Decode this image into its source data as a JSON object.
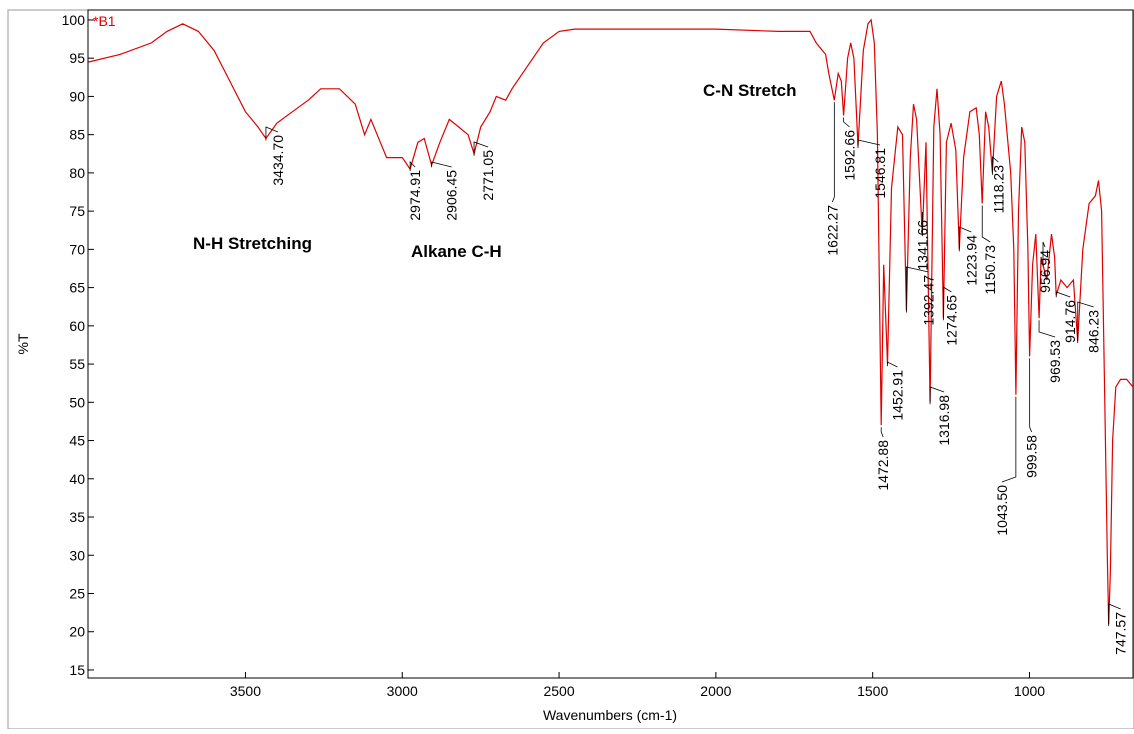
{
  "chart_data": {
    "type": "line",
    "y_label": "%T",
    "x_label": "Wavenumbers (cm-1)",
    "sample_label": "*B1",
    "annotations": [
      "N-H Stretching",
      "Alkane C-H",
      "C-N Stretch"
    ],
    "series": [
      {
        "name": "*B1",
        "color": "#e00000",
        "x": [
          4000,
          3900,
          3800,
          3750,
          3700,
          3650,
          3600,
          3550,
          3500,
          3460,
          3434.7,
          3400,
          3350,
          3300,
          3260,
          3200,
          3150,
          3120,
          3100,
          3080,
          3050,
          3000,
          2974.9,
          2950,
          2930,
          2906.5,
          2880,
          2850,
          2820,
          2790,
          2771,
          2750,
          2720,
          2700,
          2670,
          2650,
          2600,
          2550,
          2500,
          2450,
          2300,
          2000,
          1800,
          1700,
          1680,
          1650,
          1640,
          1622.3,
          1610,
          1600,
          1592.7,
          1580,
          1570,
          1560,
          1546.8,
          1530,
          1515,
          1505,
          1495,
          1485,
          1472.9,
          1465,
          1452.9,
          1440,
          1420,
          1405,
          1392.5,
          1380,
          1370,
          1360,
          1341.7,
          1330,
          1317,
          1305,
          1295,
          1285,
          1274.7,
          1265,
          1250,
          1235,
          1223.9,
          1210,
          1190,
          1170,
          1160,
          1150.7,
          1140,
          1130,
          1118.2,
          1105,
          1090,
          1080,
          1060,
          1050,
          1043.5,
          1035,
          1025,
          1015,
          1005,
          999.6,
          990,
          980,
          969.5,
          963,
          956.9,
          945,
          930,
          920,
          914.8,
          900,
          880,
          860,
          846.2,
          830,
          810,
          790,
          780,
          770,
          760,
          752,
          747.6,
          742,
          735,
          725,
          710,
          690,
          670
        ],
        "values": [
          94.5,
          95.5,
          97,
          98.5,
          99.5,
          98.5,
          96,
          92,
          88,
          86,
          84.5,
          86.5,
          88,
          89.5,
          91,
          91,
          89,
          85,
          87,
          85,
          82,
          82,
          80.5,
          84,
          84.5,
          81,
          84,
          87,
          86,
          85,
          82.5,
          86,
          88,
          90,
          89.5,
          91,
          94,
          97,
          98.5,
          98.8,
          98.8,
          98.8,
          98.5,
          98.5,
          97,
          95.5,
          93,
          89.5,
          93,
          92,
          87.5,
          95,
          97,
          95,
          83.5,
          96,
          99.5,
          100,
          97,
          85,
          47,
          68,
          55,
          78,
          86,
          85,
          62,
          82,
          89,
          87,
          72,
          84,
          50,
          86,
          91,
          85,
          61,
          84,
          86.5,
          83,
          70,
          82,
          88,
          88.5,
          85,
          76,
          88,
          86,
          80,
          90,
          92,
          89,
          80,
          70,
          51,
          75,
          86,
          84,
          70,
          56,
          68,
          72,
          61,
          69,
          68,
          66,
          72,
          69,
          64,
          66,
          65,
          66,
          58,
          70,
          76,
          77,
          79,
          75,
          50,
          30,
          21,
          28,
          45,
          52,
          53,
          53,
          52
        ]
      }
    ],
    "peaks": [
      {
        "value": 3434.7,
        "label": "3434.70",
        "y": 84.5
      },
      {
        "value": 2974.91,
        "label": "2974.91",
        "y": 80.5
      },
      {
        "value": 2906.45,
        "label": "2906.45",
        "y": 81
      },
      {
        "value": 2771.05,
        "label": "2771.05",
        "y": 82.5
      },
      {
        "value": 1622.27,
        "label": "1622.27",
        "y": 89.5
      },
      {
        "value": 1592.66,
        "label": "1592.66",
        "y": 87.5
      },
      {
        "value": 1546.81,
        "label": "1546.81",
        "y": 83.5
      },
      {
        "value": 1472.88,
        "label": "1472.88",
        "y": 47
      },
      {
        "value": 1452.91,
        "label": "1452.91",
        "y": 55
      },
      {
        "value": 1392.47,
        "label": "1392.47",
        "y": 62
      },
      {
        "value": 1341.66,
        "label": "1341.66",
        "y": 72
      },
      {
        "value": 1316.98,
        "label": "1316.98",
        "y": 50
      },
      {
        "value": 1274.65,
        "label": "1274.65",
        "y": 61
      },
      {
        "value": 1223.94,
        "label": "1223.94",
        "y": 70
      },
      {
        "value": 1150.73,
        "label": "1150.73",
        "y": 76
      },
      {
        "value": 1118.23,
        "label": "1118.23",
        "y": 80
      },
      {
        "value": 1043.5,
        "label": "1043.50",
        "y": 51
      },
      {
        "value": 999.58,
        "label": "999.58",
        "y": 56
      },
      {
        "value": 969.53,
        "label": "969.53",
        "y": 61
      },
      {
        "value": 956.94,
        "label": "956.94",
        "y": 68
      },
      {
        "value": 914.76,
        "label": "914.76",
        "y": 64
      },
      {
        "value": 846.23,
        "label": "846.23",
        "y": 58
      },
      {
        "value": 747.57,
        "label": "747.57",
        "y": 21
      }
    ],
    "xlim": [
      4002,
      670
    ],
    "ylim": [
      13.95,
      101.3
    ],
    "xticks": [
      3500,
      3000,
      2500,
      2000,
      1500,
      1000
    ],
    "yticks": [
      15,
      20,
      25,
      30,
      35,
      40,
      45,
      50,
      55,
      60,
      65,
      70,
      75,
      80,
      85,
      90,
      95,
      100
    ]
  }
}
